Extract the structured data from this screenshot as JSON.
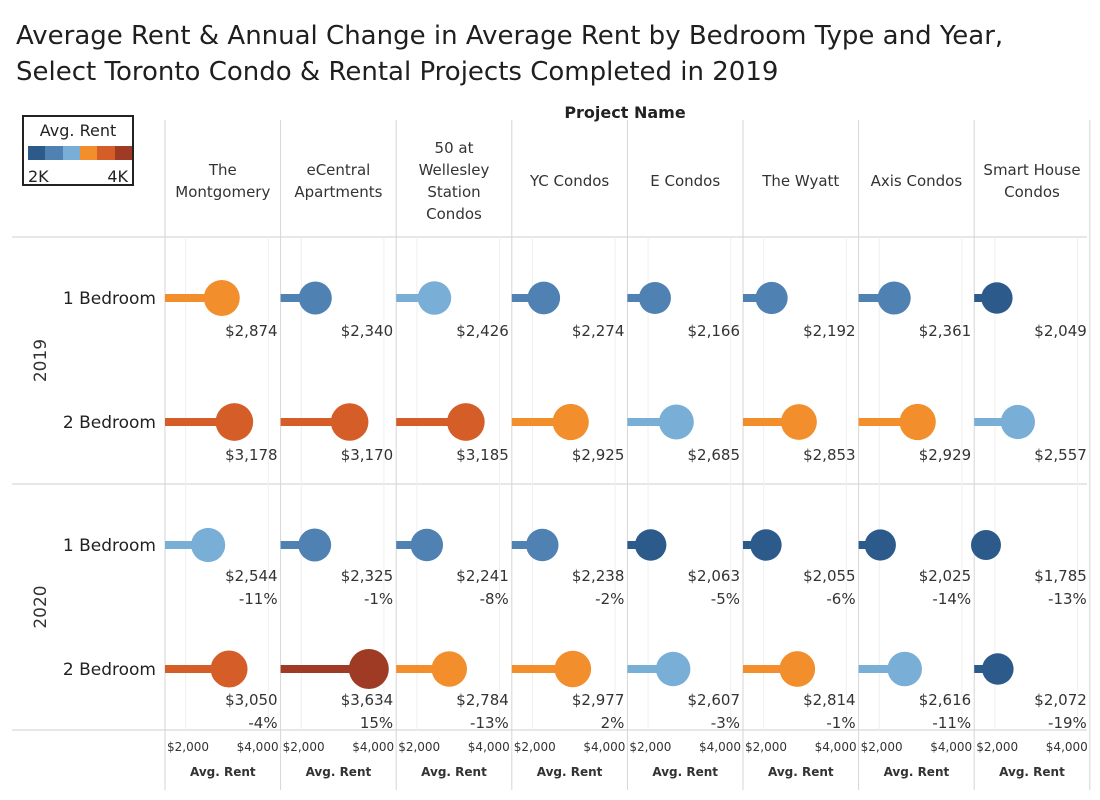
{
  "chart_data": {
    "type": "lollipop",
    "title": "Average Rent & Annual Change in Average Rent by Bedroom Type and Year, Select Toronto Condo & Rental Projects Completed in 2019",
    "column_header": "Project Name",
    "x_axis_label": "Avg. Rent",
    "xlim": [
      1500,
      4200
    ],
    "x_ticks": [
      2000,
      4000
    ],
    "x_tick_labels": [
      "$2,000",
      "$4,000"
    ],
    "legend": {
      "title": "Avg. Rent",
      "min_label": "2K",
      "max_label": "4K",
      "colors": [
        "#2c5a8a",
        "#4f82b3",
        "#79aed6",
        "#f28e2b",
        "#d55d28",
        "#9f3a24"
      ]
    },
    "projects": [
      "The Montgomery",
      "eCentral Apartments",
      "50 at Wellesley Station Condos",
      "YC Condos",
      "E Condos",
      "The Wyatt",
      "Axis Condos",
      "Smart House Condos"
    ],
    "project_header_lines": [
      [
        "The",
        "Montgomery"
      ],
      [
        "eCentral",
        "Apartments"
      ],
      [
        "50 at",
        "Wellesley",
        "Station",
        "Condos"
      ],
      [
        "YC Condos"
      ],
      [
        "E Condos"
      ],
      [
        "The Wyatt"
      ],
      [
        "Axis Condos"
      ],
      [
        "Smart House",
        "Condos"
      ]
    ],
    "years": [
      "2019",
      "2020"
    ],
    "bedroom_types": [
      "1 Bedroom",
      "2 Bedroom"
    ],
    "rows": [
      {
        "year": "2019",
        "bedroom": "1 Bedroom",
        "values": [
          2874,
          2340,
          2426,
          2274,
          2166,
          2192,
          2361,
          2049
        ],
        "value_labels": [
          "$2,874",
          "$2,340",
          "$2,426",
          "$2,274",
          "$2,166",
          "$2,192",
          "$2,361",
          "$2,049"
        ],
        "change_labels": [
          "",
          "",
          "",
          "",
          "",
          "",
          "",
          ""
        ]
      },
      {
        "year": "2019",
        "bedroom": "2 Bedroom",
        "values": [
          3178,
          3170,
          3185,
          2925,
          2685,
          2853,
          2929,
          2557
        ],
        "value_labels": [
          "$3,178",
          "$3,170",
          "$3,185",
          "$2,925",
          "$2,685",
          "$2,853",
          "$2,929",
          "$2,557"
        ],
        "change_labels": [
          "",
          "",
          "",
          "",
          "",
          "",
          "",
          ""
        ]
      },
      {
        "year": "2020",
        "bedroom": "1 Bedroom",
        "values": [
          2544,
          2325,
          2241,
          2238,
          2063,
          2055,
          2025,
          1785
        ],
        "value_labels": [
          "$2,544",
          "$2,325",
          "$2,241",
          "$2,238",
          "$2,063",
          "$2,055",
          "$2,025",
          "$1,785"
        ],
        "change_labels": [
          "-11%",
          "-1%",
          "-8%",
          "-2%",
          "-5%",
          "-6%",
          "-14%",
          "-13%"
        ]
      },
      {
        "year": "2020",
        "bedroom": "2 Bedroom",
        "values": [
          3050,
          3634,
          2784,
          2977,
          2607,
          2814,
          2616,
          2072
        ],
        "value_labels": [
          "$3,050",
          "$3,634",
          "$2,784",
          "$2,977",
          "$2,607",
          "$2,814",
          "$2,616",
          "$2,072"
        ],
        "change_labels": [
          "-4%",
          "15%",
          "-13%",
          "2%",
          "-3%",
          "-1%",
          "-11%",
          "-19%"
        ]
      }
    ]
  }
}
